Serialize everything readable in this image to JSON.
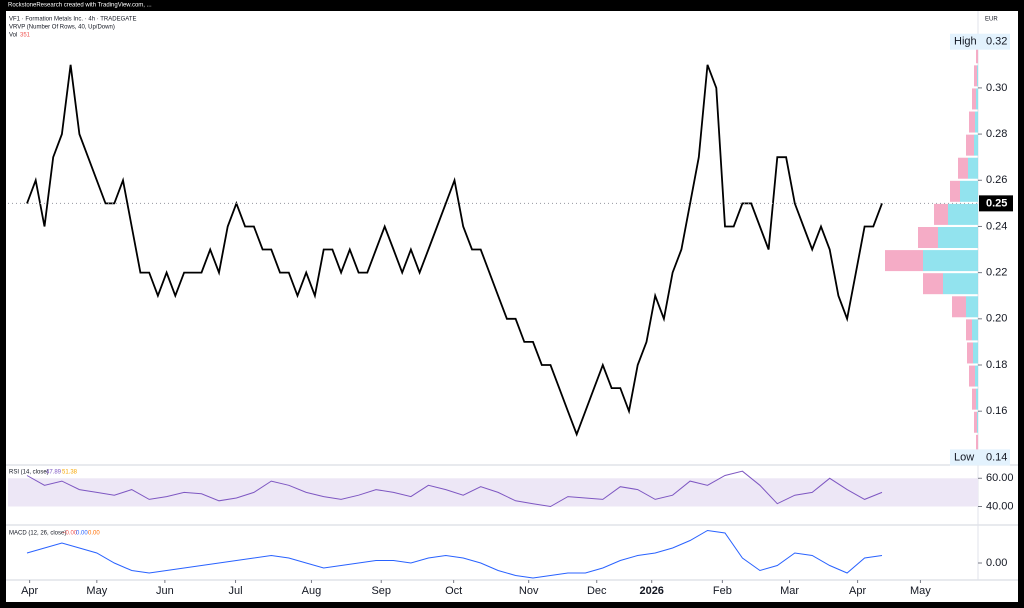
{
  "header": {
    "credit": "RockstoneResearch created with TradingView.com, ...",
    "currency": "EUR"
  },
  "chart_data": [
    {
      "type": "line",
      "title": "VF1 · Formation Metals Inc. · 4h · TRADEGATE",
      "subtitle": "VRVP (Number Of Rows, 40, Up/Down)",
      "volume_label": "Vol",
      "volume_value": 351,
      "color": "#000000",
      "values": [
        0.25,
        0.26,
        0.24,
        0.27,
        0.28,
        0.31,
        0.28,
        0.27,
        0.26,
        0.25,
        0.25,
        0.26,
        0.24,
        0.22,
        0.22,
        0.21,
        0.22,
        0.21,
        0.22,
        0.22,
        0.22,
        0.23,
        0.22,
        0.24,
        0.25,
        0.24,
        0.24,
        0.23,
        0.23,
        0.22,
        0.22,
        0.21,
        0.22,
        0.21,
        0.23,
        0.23,
        0.22,
        0.23,
        0.22,
        0.22,
        0.23,
        0.24,
        0.23,
        0.22,
        0.23,
        0.22,
        0.23,
        0.24,
        0.25,
        0.26,
        0.24,
        0.23,
        0.23,
        0.22,
        0.21,
        0.2,
        0.2,
        0.19,
        0.19,
        0.18,
        0.18,
        0.17,
        0.16,
        0.15,
        0.16,
        0.17,
        0.18,
        0.17,
        0.17,
        0.16,
        0.18,
        0.19,
        0.21,
        0.2,
        0.22,
        0.23,
        0.25,
        0.27,
        0.31,
        0.3,
        0.24,
        0.24,
        0.25,
        0.25,
        0.24,
        0.23,
        0.27,
        0.27,
        0.25,
        0.24,
        0.23,
        0.24,
        0.23,
        0.21,
        0.2,
        0.22,
        0.24,
        0.24,
        0.25
      ],
      "xlim": [
        -2.18,
        109
      ],
      "xticks": [
        {
          "value": 0.3,
          "label": "Apr"
        },
        {
          "value": 8,
          "label": "May"
        },
        {
          "value": 15.8,
          "label": "Jun"
        },
        {
          "value": 23.9,
          "label": "Jul"
        },
        {
          "value": 32.6,
          "label": "Aug"
        },
        {
          "value": 40.6,
          "label": "Sep"
        },
        {
          "value": 48.9,
          "label": "Oct"
        },
        {
          "value": 57.5,
          "label": "Nov"
        },
        {
          "value": 65.3,
          "label": "Dec"
        },
        {
          "value": 71.6,
          "label": "2026"
        },
        {
          "value": 79.7,
          "label": "Feb"
        },
        {
          "value": 87.4,
          "label": "Mar"
        },
        {
          "value": 95.2,
          "label": "Apr"
        },
        {
          "value": 102.4,
          "label": "May"
        }
      ],
      "ylim": [
        0.138,
        0.332
      ],
      "yticks": [
        {
          "value": 0.14,
          "label": "0.14"
        },
        {
          "value": 0.16,
          "label": "0.16"
        },
        {
          "value": 0.18,
          "label": "0.18"
        },
        {
          "value": 0.2,
          "label": "0.20"
        },
        {
          "value": 0.22,
          "label": "0.22"
        },
        {
          "value": 0.24,
          "label": "0.24"
        },
        {
          "value": 0.26,
          "label": "0.26"
        },
        {
          "value": 0.28,
          "label": "0.28"
        },
        {
          "value": 0.3,
          "label": "0.30"
        },
        {
          "value": 0.32,
          "label": "0.32"
        }
      ],
      "last_value": 0.25,
      "high_label": "High",
      "high": 0.32,
      "low_label": "Low",
      "low": 0.14
    },
    {
      "type": "profile",
      "levels": [
        0.315,
        0.305,
        0.295,
        0.285,
        0.275,
        0.265,
        0.255,
        0.245,
        0.235,
        0.225,
        0.215,
        0.205,
        0.195,
        0.185,
        0.175,
        0.165,
        0.155,
        0.145
      ],
      "series": [
        {
          "name": "Up",
          "color": "#86e0ec",
          "values": [
            0,
            1,
            2,
            3,
            4,
            10,
            18,
            30,
            40,
            55,
            35,
            12,
            6,
            5,
            3,
            2,
            1,
            0
          ]
        },
        {
          "name": "Down",
          "color": "#f4a3c0",
          "values": [
            2,
            3,
            4,
            6,
            8,
            10,
            10,
            14,
            20,
            38,
            20,
            14,
            6,
            6,
            6,
            4,
            3,
            2
          ]
        }
      ]
    },
    {
      "type": "line",
      "title": "RSI (14, close)",
      "last_values": [
        47.89,
        51.38
      ],
      "color": "#7e57c2",
      "values": [
        62,
        55,
        58,
        52,
        50,
        48,
        52,
        45,
        47,
        50,
        49,
        44,
        46,
        50,
        58,
        55,
        50,
        47,
        45,
        48,
        52,
        50,
        47,
        55,
        52,
        48,
        54,
        50,
        44,
        42,
        40,
        47,
        46,
        45,
        54,
        52,
        45,
        48,
        58,
        55,
        62,
        65,
        55,
        42,
        48,
        50,
        60,
        52,
        45,
        50
      ],
      "xlim": [
        -1.09,
        54.5
      ],
      "ylim": [
        29,
        68
      ],
      "yticks": [
        {
          "value": 60,
          "label": "60.00"
        },
        {
          "value": 40,
          "label": "40.00"
        }
      ]
    },
    {
      "type": "line",
      "title": "MACD (12, 26, close)",
      "legend_values": [
        "−0.00",
        "0.00",
        "0.00"
      ],
      "color": "#2962ff",
      "values": [
        0.004,
        0.006,
        0.008,
        0.006,
        0.004,
        0.0,
        -0.003,
        -0.004,
        -0.003,
        -0.002,
        -0.001,
        0.0,
        0.001,
        0.002,
        0.003,
        0.002,
        0.0,
        -0.002,
        -0.001,
        0.0,
        0.001,
        0.001,
        0.0,
        0.002,
        0.003,
        0.002,
        0.0,
        -0.003,
        -0.005,
        -0.006,
        -0.005,
        -0.004,
        -0.004,
        -0.002,
        0.001,
        0.003,
        0.004,
        0.006,
        0.009,
        0.013,
        0.012,
        0.002,
        -0.003,
        -0.001,
        0.004,
        0.003,
        -0.001,
        -0.004,
        0.002,
        0.003
      ],
      "xlim": [
        -1.09,
        54.5
      ],
      "ylim": [
        -0.006,
        0.0144
      ],
      "yticks": [
        {
          "value": 0,
          "label": "0.00"
        }
      ]
    }
  ]
}
